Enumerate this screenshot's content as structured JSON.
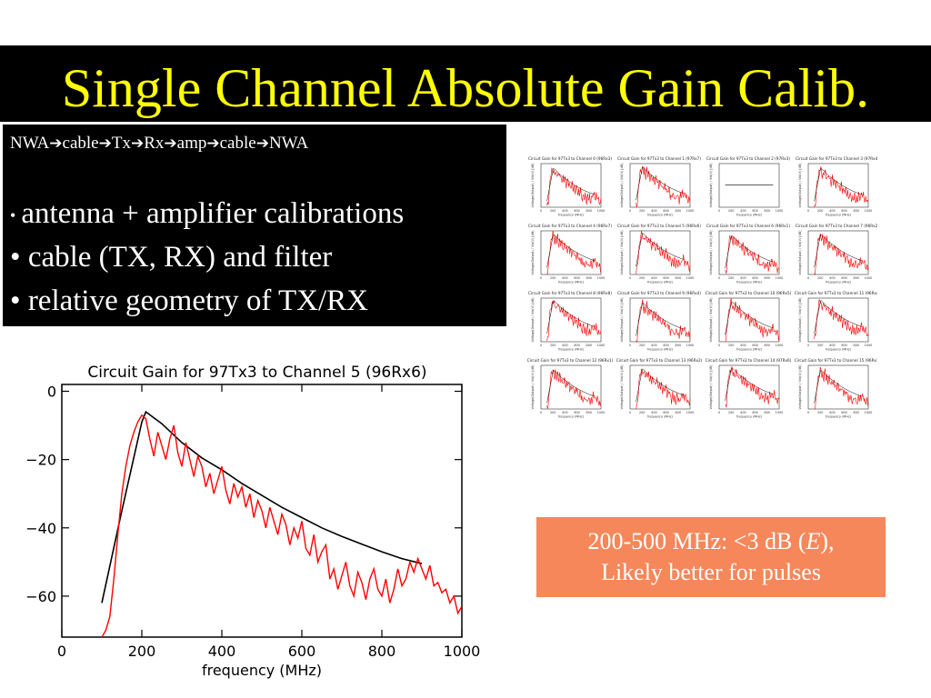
{
  "slide": {
    "title": "Single Channel Absolute Gain Calib.",
    "flow": [
      "NWA",
      "cable",
      "Tx",
      "Rx",
      "amp",
      "cable",
      "NWA"
    ],
    "bullets": [
      "antenna + amplifier calibrations",
      "cable (TX, RX) and filter",
      "relative geometry of TX/RX"
    ],
    "note": {
      "line1_prefix": "200-500 MHz:  <3 dB (",
      "line1_italic": "E",
      "line1_suffix": "),",
      "line2": "Likely better for pulses"
    },
    "colors": {
      "title": "#ffff00",
      "title_bar": "#000000",
      "note_box": "#f5875a",
      "measured": "#ff0000",
      "model": "#000000"
    },
    "arrow_icon": "right-arrow-icon"
  },
  "chart_data": {
    "type": "line",
    "title": "Circuit Gain for 97Tx3 to Channel 5 (96Rx6)",
    "xlabel": "frequency (MHz)",
    "ylabel": "",
    "xlim": [
      0,
      1000
    ],
    "ylim": [
      -72,
      2
    ],
    "xticks": [
      0,
      200,
      400,
      600,
      800,
      1000
    ],
    "yticks": [
      0,
      -20,
      -40,
      -60
    ],
    "grid": false,
    "series": [
      {
        "color": "#000000",
        "x": [
          100,
          150,
          200,
          210,
          250,
          300,
          350,
          400,
          450,
          500,
          550,
          600,
          650,
          700,
          750,
          800,
          850,
          900
        ],
        "y": [
          -62,
          -35,
          -9,
          -6,
          -9.5,
          -15,
          -19.5,
          -23,
          -27,
          -30.5,
          -34,
          -37,
          -40,
          -42.5,
          -44.8,
          -47,
          -49,
          -50.5
        ]
      },
      {
        "color": "#ff0000",
        "x": [
          100,
          110,
          120,
          130,
          140,
          150,
          160,
          170,
          180,
          190,
          200,
          210,
          220,
          230,
          240,
          250,
          260,
          270,
          280,
          290,
          300,
          310,
          320,
          330,
          340,
          350,
          360,
          370,
          380,
          390,
          400,
          410,
          420,
          430,
          440,
          450,
          460,
          470,
          480,
          490,
          500,
          510,
          520,
          530,
          540,
          550,
          560,
          570,
          580,
          590,
          600,
          610,
          620,
          630,
          640,
          650,
          660,
          670,
          680,
          690,
          700,
          710,
          720,
          730,
          740,
          750,
          760,
          770,
          780,
          790,
          800,
          810,
          820,
          830,
          840,
          850,
          860,
          870,
          880,
          890,
          900,
          910,
          920,
          930,
          940,
          950,
          960,
          970,
          980,
          990,
          1000
        ],
        "y": [
          -72,
          -70,
          -66,
          -55,
          -42,
          -30,
          -22,
          -16,
          -12,
          -9,
          -7,
          -8,
          -14,
          -19,
          -12,
          -16,
          -20,
          -14,
          -10,
          -18,
          -22,
          -15,
          -20,
          -25,
          -19,
          -22,
          -28,
          -24,
          -30,
          -26,
          -22,
          -29,
          -33,
          -27,
          -31,
          -28,
          -34,
          -30,
          -37,
          -32,
          -35,
          -40,
          -34,
          -38,
          -42,
          -36,
          -39,
          -45,
          -40,
          -43,
          -38,
          -46,
          -48,
          -42,
          -50,
          -47,
          -45,
          -55,
          -52,
          -58,
          -54,
          -50,
          -57,
          -60,
          -53,
          -56,
          -61,
          -55,
          -52,
          -58,
          -60,
          -55,
          -62,
          -58,
          -52,
          -57,
          -55,
          -50,
          -53,
          -49,
          -52,
          -55,
          -51,
          -57,
          -56,
          -59,
          -58,
          -62,
          -60,
          -65,
          -63
        ]
      }
    ],
    "thumbnails": {
      "rows": 4,
      "cols": 4,
      "titles": [
        "Circuit Gain for 97Tx3 to Channel 0 (96Rx3)",
        "Circuit Gain for 97Tx3 to Channel 1 (97Rx7)",
        "Circuit Gain for 97Tx3 to Channel 2 (97Rx3)",
        "Circuit Gain for 97Tx3 to Channel 3 (97Rx4)",
        "Circuit Gain for 97Tx3 to Channel 4 (96Rx7)",
        "Circuit Gain for 97Tx3 to Channel 5 (96Rx6)",
        "Circuit Gain for 97Tx3 to Channel 6 (96Rx1)",
        "Circuit Gain for 97Tx3 to Channel 7 (96Rx2)",
        "Circuit Gain for 97Tx3 to Channel 8 (96Rx8)",
        "Circuit Gain for 97Tx3 to Channel 9 (96Rx4)",
        "Circuit Gain for 97Tx3 to Channel 10 (96Rx5)",
        "Circuit Gain for 97Tx3 to Channel 11 (96Rx4)",
        "Circuit Gain for 97Tx3 to Channel 12 (96Rx1)",
        "Circuit Gain for 97Tx3 to Channel 13 (96Rx2)",
        "Circuit Gain for 97Tx3 to Channel 14 (97Rx6)",
        "Circuit Gain for 97Tx3 to Channel 15 (96Rx1)"
      ],
      "xlabel": "frequency (MHz)",
      "ylabel": "Voltage(Output) / Vin(V) [dB]",
      "xticks": [
        0,
        200,
        400,
        600,
        800,
        1000
      ],
      "flat_panel": 2
    }
  }
}
